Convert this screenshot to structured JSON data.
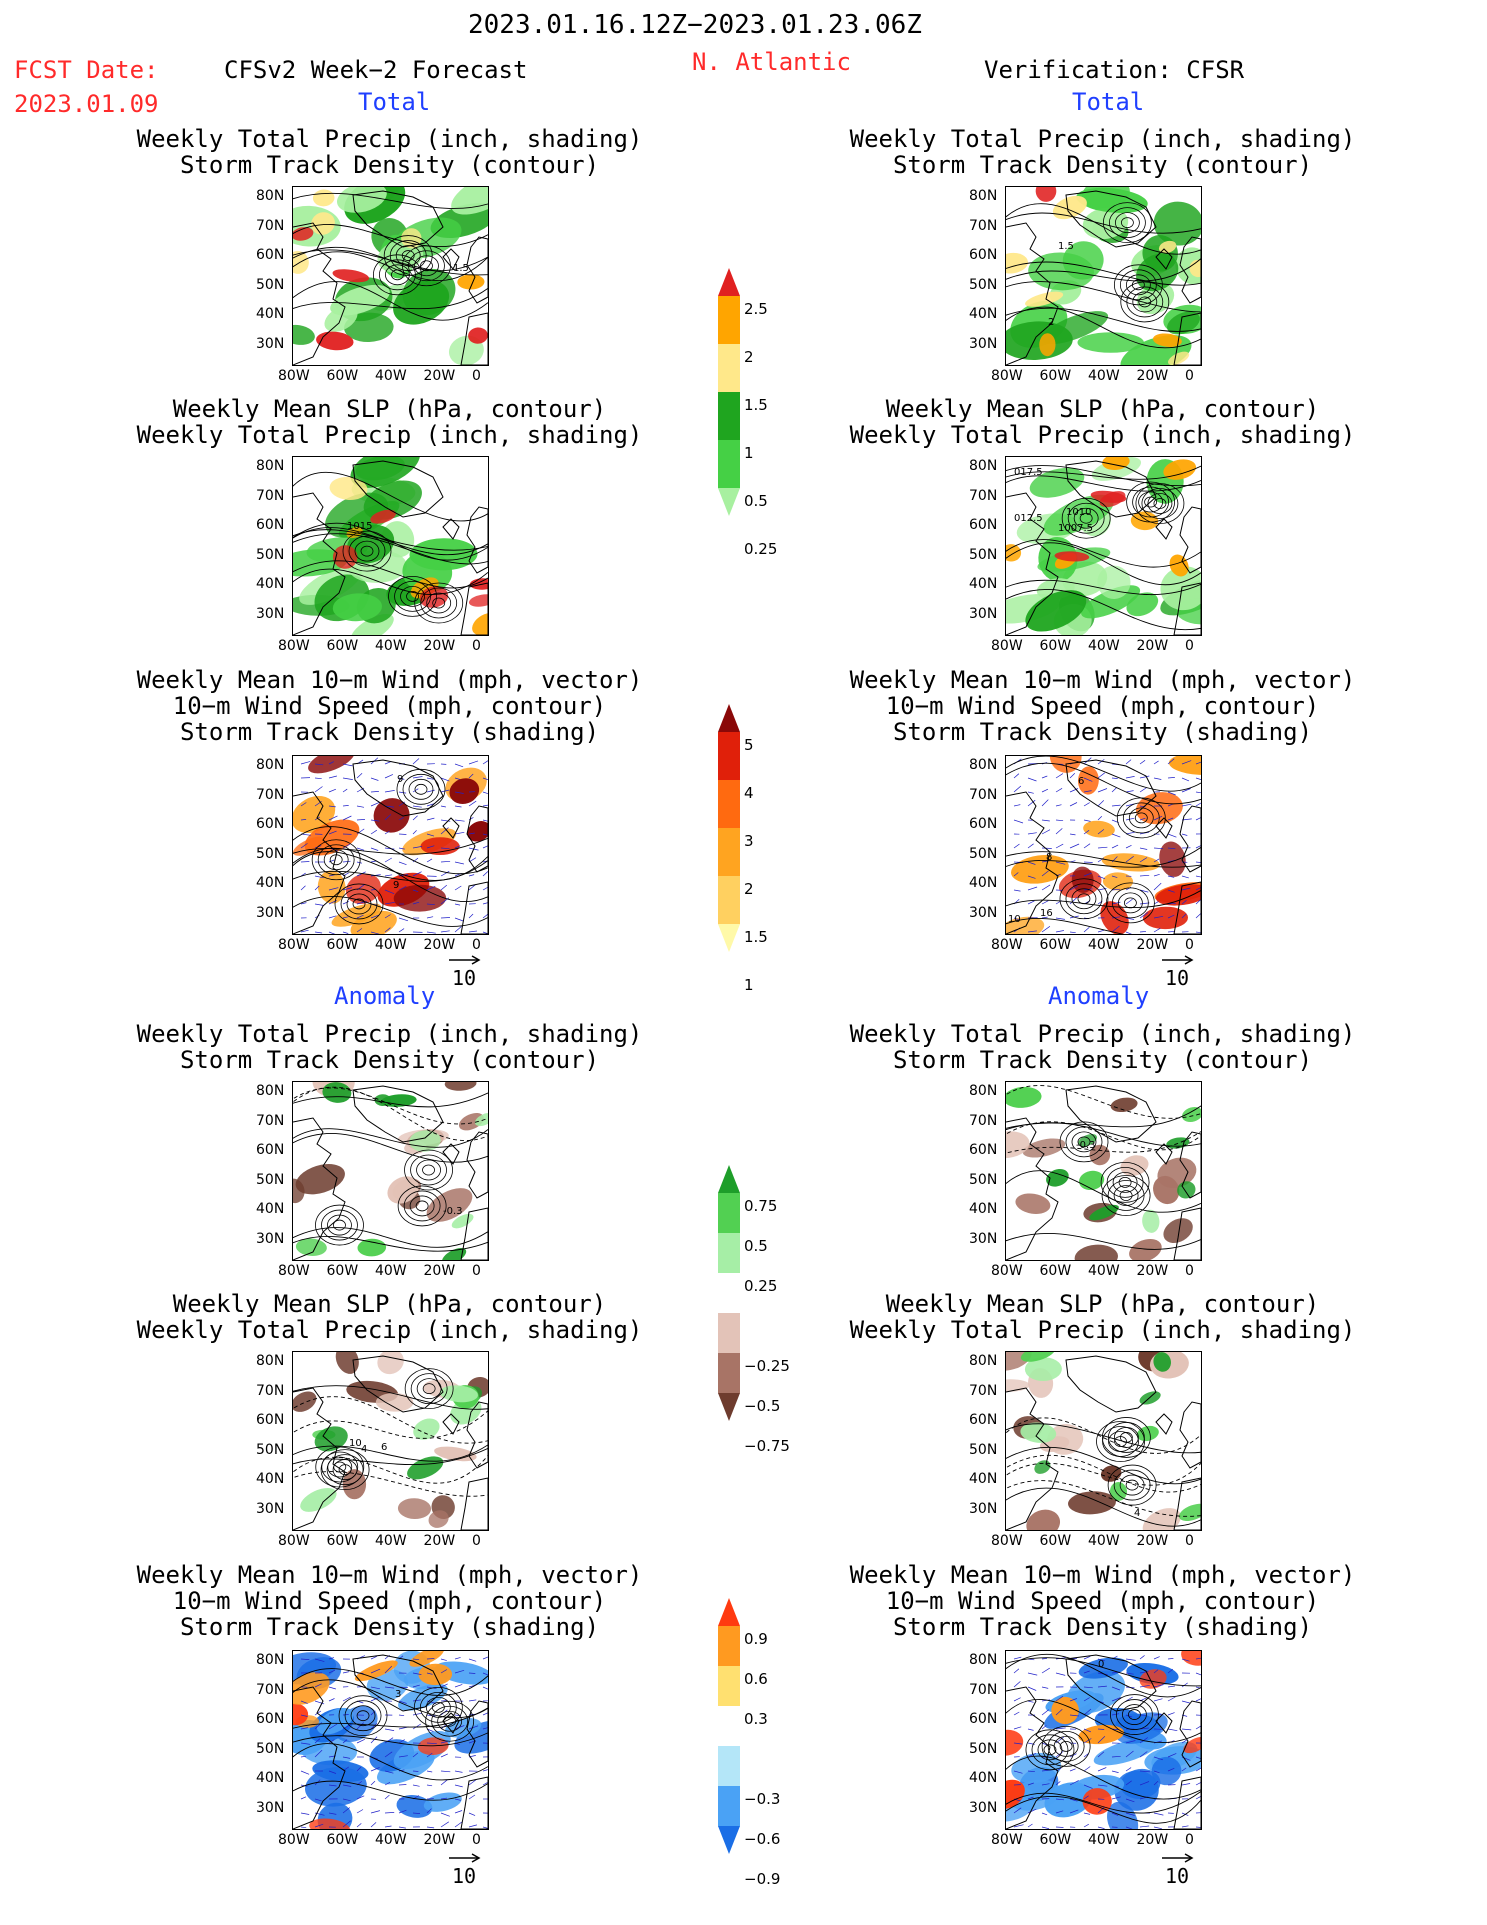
{
  "header": {
    "period": "2023.01.16.12Z−2023.01.23.06Z",
    "fcst_label": "FCST Date:",
    "fcst_date": "2023.01.09",
    "left_title": "CFSv2 Week−2 Forecast",
    "region": "N. Atlantic",
    "right_title": "Verification: CFSR"
  },
  "sections": {
    "total": "Total",
    "anomaly": "Anomaly"
  },
  "panel_titles": {
    "precip_storm": [
      "Weekly Total Precip (inch, shading)",
      "Storm Track Density (contour)"
    ],
    "slp_precip": [
      "Weekly Mean SLP (hPa, contour)",
      "Weekly Total Precip (inch, shading)"
    ],
    "wind_storm": [
      "Weekly Mean 10−m Wind (mph, vector)",
      "10−m Wind Speed (mph, contour)",
      "Storm Track Density (shading)"
    ]
  },
  "axes": {
    "lat_ticks": [
      "80N",
      "70N",
      "60N",
      "50N",
      "40N",
      "30N"
    ],
    "lon_ticks": [
      "80W",
      "60W",
      "40W",
      "20W",
      "0"
    ]
  },
  "vector_ref": "10",
  "contour_labels": {
    "f1": [
      "1.5"
    ],
    "v1": [
      "1.5",
      "2"
    ],
    "f2": [
      "1015"
    ],
    "v2": [
      "017.5",
      "012.5",
      "1010",
      "1007.5"
    ],
    "f3": [
      "9",
      "9"
    ],
    "v3": [
      "8",
      "6",
      "10",
      "16"
    ],
    "f4": [
      "-0.3"
    ],
    "v4": [
      "-0.3"
    ],
    "f5": [
      "10",
      "4",
      "6"
    ],
    "v5": [
      "4"
    ],
    "f6": [
      "3"
    ],
    "v6": [
      "0"
    ]
  },
  "colorbars": {
    "precip_total": [
      "2.5",
      "2",
      "1.5",
      "1",
      "0.5",
      "0.25"
    ],
    "storm_total": [
      "5",
      "4",
      "3",
      "2",
      "1.5",
      "1"
    ],
    "precip_anom": [
      "0.75",
      "0.5",
      "0.25",
      "−0.25",
      "−0.5",
      "−0.75"
    ],
    "storm_anom": [
      "0.9",
      "0.6",
      "0.3",
      "−0.3",
      "−0.6",
      "−0.9"
    ]
  },
  "colors": {
    "precip_total": [
      "#1fa51f",
      "#45d045",
      "#a8f0a0",
      "#ffe88a",
      "#ffa500",
      "#e02020"
    ],
    "precip_anom": [
      "#1e9e2a",
      "#52d052",
      "#a6eea6",
      "#e3c3b8",
      "#a87466",
      "#6e3c2e"
    ],
    "storm_total": [
      "#fff9a8",
      "#ffd060",
      "#ffa420",
      "#ff6a10",
      "#e0200a",
      "#8a0808"
    ],
    "storm_anom": [
      "#1a6ee6",
      "#4aa2f5",
      "#b4e6f8",
      "#ffe070",
      "#ff9a20",
      "#ff3a10"
    ],
    "contour_black": "#000000",
    "contour_blue": "#2020c8",
    "header_red": "#ff2a2a",
    "section_blue": "#1f3fff"
  }
}
